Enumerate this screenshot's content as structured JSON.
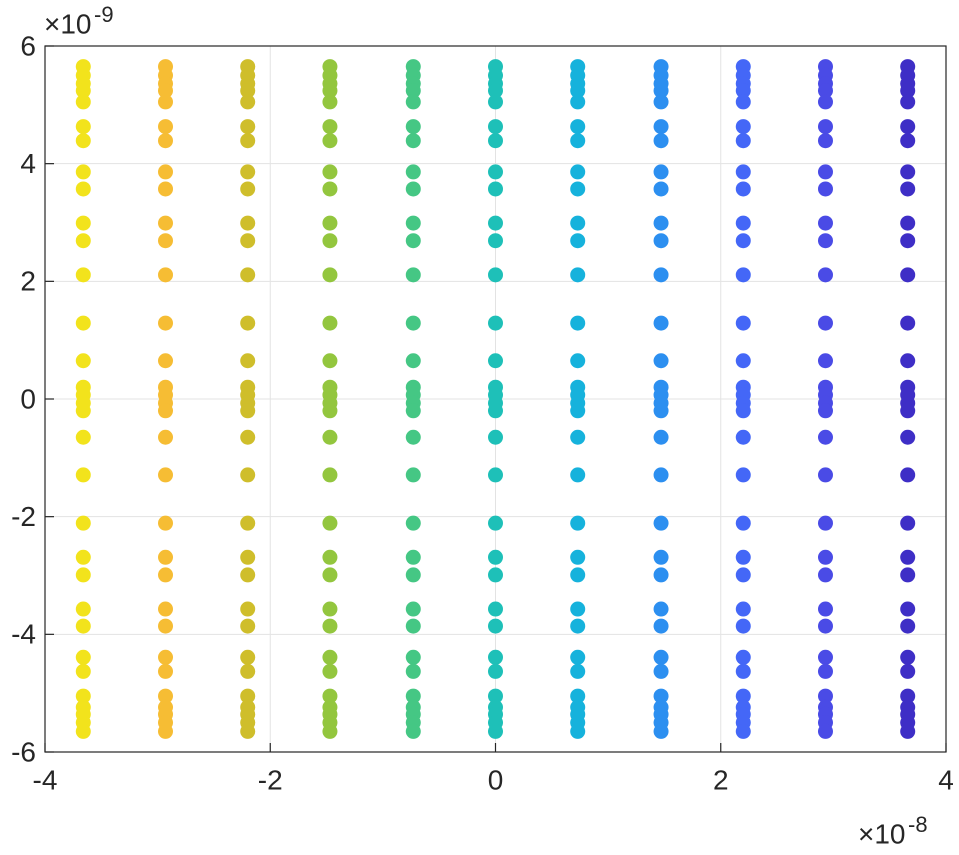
{
  "chart_data": {
    "type": "scatter",
    "grid": true,
    "xlim": [
      -4e-08,
      4e-08
    ],
    "xticks": [
      {
        "value": -4e-08,
        "label": "-4"
      },
      {
        "value": -2e-08,
        "label": "-2"
      },
      0,
      {
        "value": 2e-08,
        "label": "2"
      },
      {
        "value": 4e-08,
        "label": "4"
      }
    ],
    "ylim": [
      -6e-09,
      6e-09
    ],
    "yticks": [
      {
        "value": -6e-09,
        "label": "-6"
      },
      {
        "value": -4e-09,
        "label": "-4"
      },
      {
        "value": -2e-09,
        "label": "-2"
      },
      0,
      {
        "value": 2e-09,
        "label": "2"
      },
      {
        "value": 4e-09,
        "label": "4"
      },
      {
        "value": 6e-09,
        "label": "6"
      }
    ],
    "x_multiplier": "×10",
    "x_exponent": "-8",
    "y_multiplier": "×10",
    "y_exponent": "-9",
    "series": [
      {
        "color": "#f2e31c",
        "x": -3.66e-08,
        "y": [
          5.65e-09,
          5.5e-09,
          5.36e-09,
          5.24e-09,
          5.05e-09,
          4.63e-09,
          4.39e-09,
          3.86e-09,
          3.57e-09,
          2.99e-09,
          2.69e-09,
          2.11e-09,
          1.29e-09,
          6.5e-10,
          2e-10,
          7e-11,
          -7e-11,
          -2e-10,
          -6.5e-10,
          -1.29e-09,
          -2.11e-09,
          -2.69e-09,
          -2.99e-09,
          -3.57e-09,
          -3.86e-09,
          -4.39e-09,
          -4.63e-09,
          -5.05e-09,
          -5.24e-09,
          -5.36e-09,
          -5.5e-09,
          -5.65e-09
        ]
      },
      {
        "color": "#f6bd34",
        "x": -2.93e-08,
        "y": [
          5.65e-09,
          5.5e-09,
          5.36e-09,
          5.24e-09,
          5.05e-09,
          4.63e-09,
          4.39e-09,
          3.86e-09,
          3.57e-09,
          2.99e-09,
          2.69e-09,
          2.11e-09,
          1.29e-09,
          6.5e-10,
          2e-10,
          7e-11,
          -7e-11,
          -2e-10,
          -6.5e-10,
          -1.29e-09,
          -2.11e-09,
          -2.69e-09,
          -2.99e-09,
          -3.57e-09,
          -3.86e-09,
          -4.39e-09,
          -4.63e-09,
          -5.05e-09,
          -5.24e-09,
          -5.36e-09,
          -5.5e-09,
          -5.65e-09
        ]
      },
      {
        "color": "#cfbe2b",
        "x": -2.2e-08,
        "y": [
          5.65e-09,
          5.5e-09,
          5.36e-09,
          5.24e-09,
          5.05e-09,
          4.63e-09,
          4.39e-09,
          3.86e-09,
          3.57e-09,
          2.99e-09,
          2.69e-09,
          2.11e-09,
          1.29e-09,
          6.5e-10,
          2e-10,
          7e-11,
          -7e-11,
          -2e-10,
          -6.5e-10,
          -1.29e-09,
          -2.11e-09,
          -2.69e-09,
          -2.99e-09,
          -3.57e-09,
          -3.86e-09,
          -4.39e-09,
          -4.63e-09,
          -5.05e-09,
          -5.24e-09,
          -5.36e-09,
          -5.5e-09,
          -5.65e-09
        ]
      },
      {
        "color": "#93c63e",
        "x": -1.47e-08,
        "y": [
          5.65e-09,
          5.5e-09,
          5.36e-09,
          5.24e-09,
          5.05e-09,
          4.63e-09,
          4.39e-09,
          3.86e-09,
          3.57e-09,
          2.99e-09,
          2.69e-09,
          2.11e-09,
          1.29e-09,
          6.5e-10,
          2e-10,
          7e-11,
          -7e-11,
          -2e-10,
          -6.5e-10,
          -1.29e-09,
          -2.11e-09,
          -2.69e-09,
          -2.99e-09,
          -3.57e-09,
          -3.86e-09,
          -4.39e-09,
          -4.63e-09,
          -5.05e-09,
          -5.24e-09,
          -5.36e-09,
          -5.5e-09,
          -5.65e-09
        ]
      },
      {
        "color": "#45c784",
        "x": -7.3e-09,
        "y": [
          5.65e-09,
          5.5e-09,
          5.36e-09,
          5.24e-09,
          5.05e-09,
          4.63e-09,
          4.39e-09,
          3.86e-09,
          3.57e-09,
          2.99e-09,
          2.69e-09,
          2.11e-09,
          1.29e-09,
          6.5e-10,
          2e-10,
          7e-11,
          -7e-11,
          -2e-10,
          -6.5e-10,
          -1.29e-09,
          -2.11e-09,
          -2.69e-09,
          -2.99e-09,
          -3.57e-09,
          -3.86e-09,
          -4.39e-09,
          -4.63e-09,
          -5.05e-09,
          -5.24e-09,
          -5.36e-09,
          -5.5e-09,
          -5.65e-09
        ]
      },
      {
        "color": "#1ec0b8",
        "x": 0,
        "y": [
          5.65e-09,
          5.5e-09,
          5.36e-09,
          5.24e-09,
          5.05e-09,
          4.63e-09,
          4.39e-09,
          3.86e-09,
          3.57e-09,
          2.99e-09,
          2.69e-09,
          2.11e-09,
          1.29e-09,
          6.5e-10,
          2e-10,
          7e-11,
          -7e-11,
          -2e-10,
          -6.5e-10,
          -1.29e-09,
          -2.11e-09,
          -2.69e-09,
          -2.99e-09,
          -3.57e-09,
          -3.86e-09,
          -4.39e-09,
          -4.63e-09,
          -5.05e-09,
          -5.24e-09,
          -5.36e-09,
          -5.5e-09,
          -5.65e-09
        ]
      },
      {
        "color": "#16b2dc",
        "x": 7.3e-09,
        "y": [
          5.65e-09,
          5.5e-09,
          5.36e-09,
          5.24e-09,
          5.05e-09,
          4.63e-09,
          4.39e-09,
          3.86e-09,
          3.57e-09,
          2.99e-09,
          2.69e-09,
          2.11e-09,
          1.29e-09,
          6.5e-10,
          2e-10,
          7e-11,
          -7e-11,
          -2e-10,
          -6.5e-10,
          -1.29e-09,
          -2.11e-09,
          -2.69e-09,
          -2.99e-09,
          -3.57e-09,
          -3.86e-09,
          -4.39e-09,
          -4.63e-09,
          -5.05e-09,
          -5.24e-09,
          -5.36e-09,
          -5.5e-09,
          -5.65e-09
        ]
      },
      {
        "color": "#2c8ff0",
        "x": 1.47e-08,
        "y": [
          5.65e-09,
          5.5e-09,
          5.36e-09,
          5.24e-09,
          5.05e-09,
          4.63e-09,
          4.39e-09,
          3.86e-09,
          3.57e-09,
          2.99e-09,
          2.69e-09,
          2.11e-09,
          1.29e-09,
          6.5e-10,
          2e-10,
          7e-11,
          -7e-11,
          -2e-10,
          -6.5e-10,
          -1.29e-09,
          -2.11e-09,
          -2.69e-09,
          -2.99e-09,
          -3.57e-09,
          -3.86e-09,
          -4.39e-09,
          -4.63e-09,
          -5.05e-09,
          -5.24e-09,
          -5.36e-09,
          -5.5e-09,
          -5.65e-09
        ]
      },
      {
        "color": "#4467f7",
        "x": 2.2e-08,
        "y": [
          5.65e-09,
          5.5e-09,
          5.36e-09,
          5.24e-09,
          5.05e-09,
          4.63e-09,
          4.39e-09,
          3.86e-09,
          3.57e-09,
          2.99e-09,
          2.69e-09,
          2.11e-09,
          1.29e-09,
          6.5e-10,
          2e-10,
          7e-11,
          -7e-11,
          -2e-10,
          -6.5e-10,
          -1.29e-09,
          -2.11e-09,
          -2.69e-09,
          -2.99e-09,
          -3.57e-09,
          -3.86e-09,
          -4.39e-09,
          -4.63e-09,
          -5.05e-09,
          -5.24e-09,
          -5.36e-09,
          -5.5e-09,
          -5.65e-09
        ]
      },
      {
        "color": "#4a4be6",
        "x": 2.93e-08,
        "y": [
          5.65e-09,
          5.5e-09,
          5.36e-09,
          5.24e-09,
          5.05e-09,
          4.63e-09,
          4.39e-09,
          3.86e-09,
          3.57e-09,
          2.99e-09,
          2.69e-09,
          2.11e-09,
          1.29e-09,
          6.5e-10,
          2e-10,
          7e-11,
          -7e-11,
          -2e-10,
          -6.5e-10,
          -1.29e-09,
          -2.11e-09,
          -2.69e-09,
          -2.99e-09,
          -3.57e-09,
          -3.86e-09,
          -4.39e-09,
          -4.63e-09,
          -5.05e-09,
          -5.24e-09,
          -5.36e-09,
          -5.5e-09,
          -5.65e-09
        ]
      },
      {
        "color": "#3e2ec6",
        "x": 3.66e-08,
        "y": [
          5.65e-09,
          5.5e-09,
          5.36e-09,
          5.24e-09,
          5.05e-09,
          4.63e-09,
          4.39e-09,
          3.86e-09,
          3.57e-09,
          2.99e-09,
          2.69e-09,
          2.11e-09,
          1.29e-09,
          6.5e-10,
          2e-10,
          7e-11,
          -7e-11,
          -2e-10,
          -6.5e-10,
          -1.29e-09,
          -2.11e-09,
          -2.69e-09,
          -2.99e-09,
          -3.57e-09,
          -3.86e-09,
          -4.39e-09,
          -4.63e-09,
          -5.05e-09,
          -5.24e-09,
          -5.36e-09,
          -5.5e-09,
          -5.65e-09
        ]
      }
    ]
  }
}
